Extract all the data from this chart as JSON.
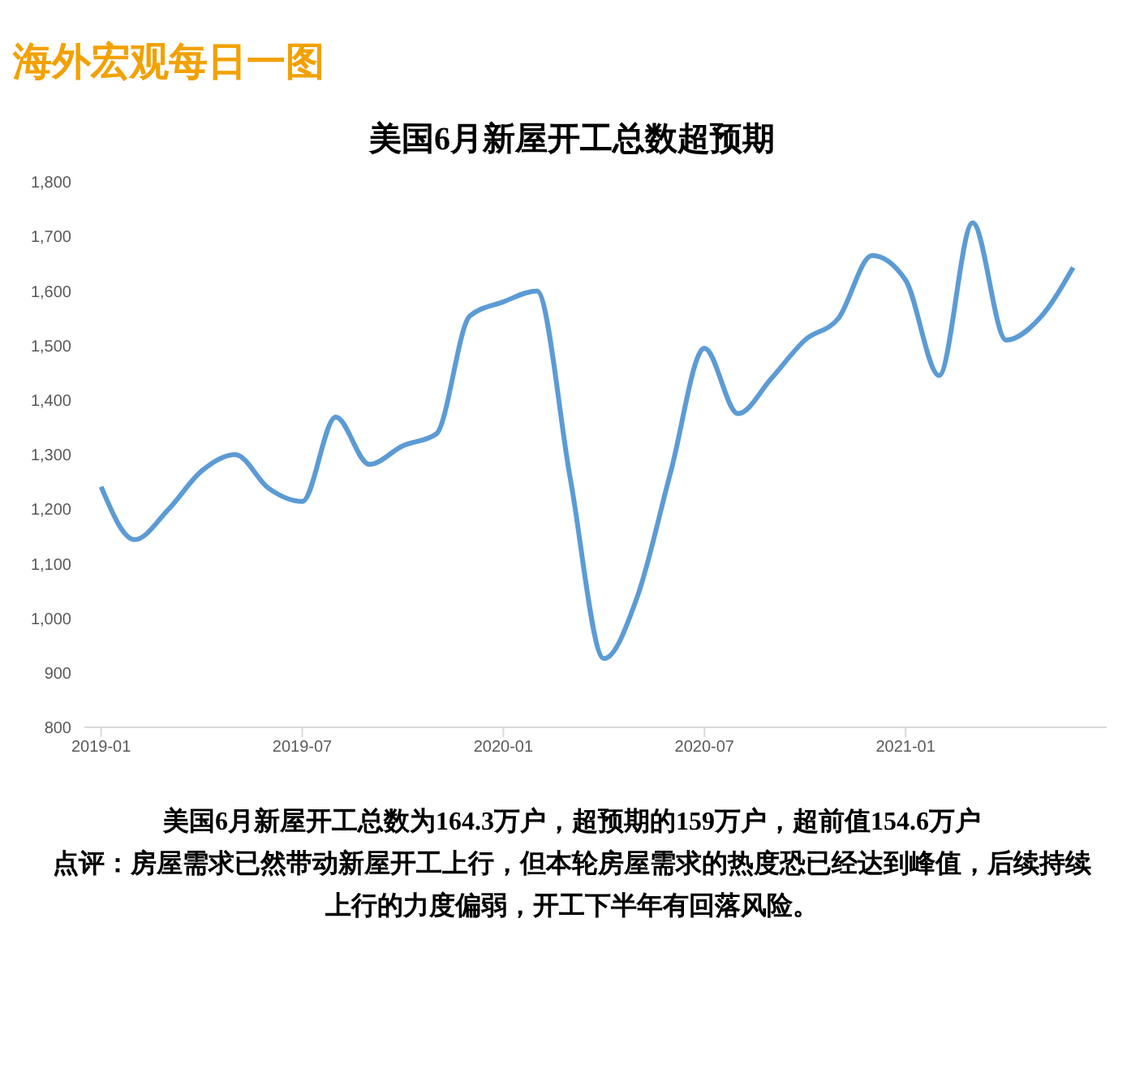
{
  "chart_data": {
    "type": "line",
    "title": "美国6月新屋开工总数超预期",
    "subtitle": "海外宏观每日一图",
    "x": [
      "2019-01",
      "2019-02",
      "2019-03",
      "2019-04",
      "2019-05",
      "2019-06",
      "2019-07",
      "2019-08",
      "2019-09",
      "2019-10",
      "2019-11",
      "2019-12",
      "2020-01",
      "2020-02",
      "2020-03",
      "2020-04",
      "2020-05",
      "2020-06",
      "2020-07",
      "2020-08",
      "2020-09",
      "2020-10",
      "2020-11",
      "2020-12",
      "2021-01",
      "2021-02",
      "2021-03",
      "2021-04",
      "2021-05",
      "2021-06"
    ],
    "series": [
      {
        "color": "#5b9bd5",
        "values": [
          1241,
          1144,
          1199,
          1270,
          1300,
          1238,
          1214,
          1369,
          1282,
          1316,
          1338,
          1554,
          1580,
          1600,
          1255,
          926,
          1040,
          1270,
          1495,
          1375,
          1440,
          1510,
          1550,
          1665,
          1620,
          1445,
          1725,
          1510,
          1550,
          1643
        ]
      }
    ],
    "xlim": [
      "2018-12-16",
      "2021-07-01"
    ],
    "xticks": [
      "2019-01",
      "2019-07",
      "2020-01",
      "2020-07",
      "2021-01"
    ],
    "ylim": [
      800,
      1800
    ],
    "yticks": [
      {
        "value": 800,
        "label": "800"
      },
      {
        "value": 900,
        "label": "900"
      },
      {
        "value": 1000,
        "label": "1,000"
      },
      {
        "value": 1100,
        "label": "1,100"
      },
      {
        "value": 1200,
        "label": "1,200"
      },
      {
        "value": 1300,
        "label": "1,300"
      },
      {
        "value": 1400,
        "label": "1,400"
      },
      {
        "value": 1500,
        "label": "1,500"
      },
      {
        "value": 1600,
        "label": "1,600"
      },
      {
        "value": 1700,
        "label": "1,700"
      },
      {
        "value": 1800,
        "label": "1,800"
      }
    ],
    "grid": false,
    "legend": false,
    "marker": "none",
    "line_style": "solid",
    "annotations": [
      "美国6月新屋开工总数为164.3万户，超预期的159万户，超前值154.6万户",
      "点评：房屋需求已然带动新屋开工上行，但本轮房屋需求的热度恐已经达到峰值，后续持续上行的力度偏弱，开工下半年有回落风险。"
    ]
  }
}
